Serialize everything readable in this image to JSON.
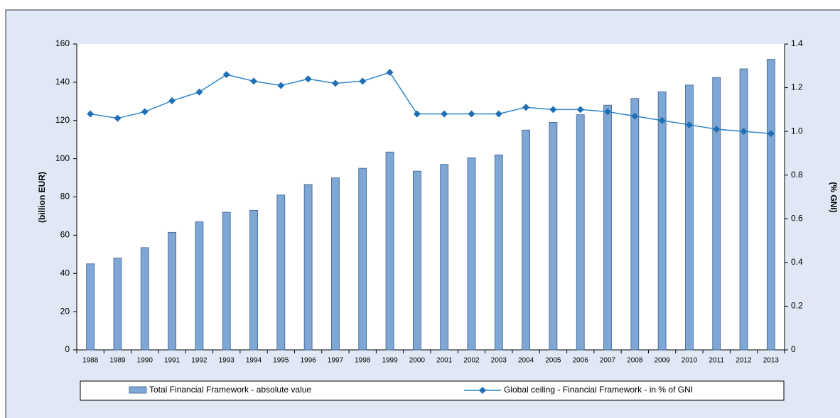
{
  "chart_data": {
    "type": "bar-line",
    "categories": [
      "1988",
      "1989",
      "1990",
      "1991",
      "1992",
      "1993",
      "1994",
      "1995",
      "1996",
      "1997",
      "1998",
      "1999",
      "2000",
      "2001",
      "2002",
      "2003",
      "2004",
      "2005",
      "2006",
      "2007",
      "2008",
      "2009",
      "2010",
      "2011",
      "2012",
      "2013"
    ],
    "series": [
      {
        "name": "Total Financial Framework - absolute value",
        "color": "#7fa7d6",
        "type": "bar",
        "values": [
          45,
          48,
          53.5,
          61.5,
          67,
          72,
          73,
          81,
          86.5,
          90,
          95,
          103.5,
          93.5,
          97,
          100.5,
          102,
          115,
          119,
          123,
          128,
          131.5,
          135,
          138.5,
          142.5,
          147,
          152
        ]
      },
      {
        "name": "Global ceiling - Financial Framework - in % of GNI",
        "color": "#2f86cc",
        "type": "line",
        "axis": "y2",
        "values": [
          1.08,
          1.06,
          1.09,
          1.14,
          1.18,
          1.26,
          1.23,
          1.21,
          1.24,
          1.22,
          1.23,
          1.27,
          1.08,
          1.08,
          1.08,
          1.08,
          1.11,
          1.1,
          1.1,
          1.09,
          1.07,
          1.05,
          1.03,
          1.01,
          1.0,
          0.99
        ]
      }
    ],
    "ylabel": "(billion EUR)",
    "y2label": "(% GNI)",
    "ylim": [
      0,
      160
    ],
    "yticks": [
      0,
      20,
      40,
      60,
      80,
      100,
      120,
      140,
      160
    ],
    "y2lim": [
      0,
      1.4
    ],
    "y2ticks": [
      0,
      0.2,
      0.4,
      0.6,
      0.8,
      {
        "value": 1.0,
        "label": "1.0"
      },
      1.2,
      1.4
    ]
  }
}
